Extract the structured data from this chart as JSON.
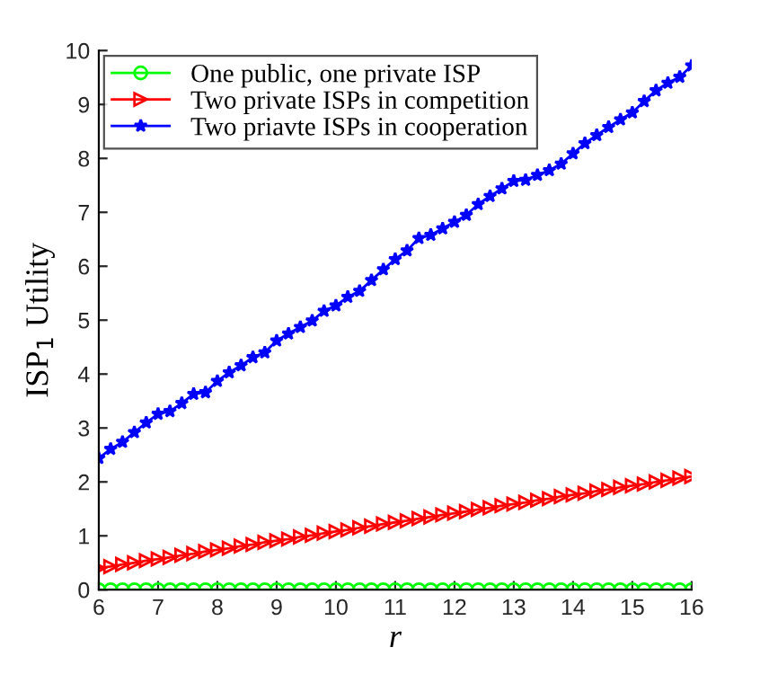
{
  "chart_data": {
    "type": "line",
    "xlabel": "r",
    "ylabel": "ISP$_{1}$ Utility",
    "x": [
      6.0,
      6.2,
      6.4,
      6.6,
      6.8,
      7.0,
      7.2,
      7.4,
      7.6,
      7.8,
      8.0,
      8.2,
      8.4,
      8.6,
      8.8,
      9.0,
      9.2,
      9.4,
      9.6,
      9.8,
      10.0,
      10.2,
      10.4,
      10.6,
      10.8,
      11.0,
      11.2,
      11.4,
      11.6,
      11.8,
      12.0,
      12.2,
      12.4,
      12.6,
      12.8,
      13.0,
      13.2,
      13.4,
      13.6,
      13.8,
      14.0,
      14.2,
      14.4,
      14.6,
      14.8,
      15.0,
      15.2,
      15.4,
      15.6,
      15.8,
      16.0
    ],
    "series": [
      {
        "name": "One public, one private ISP",
        "color": "#00ff00",
        "marker": "circle",
        "values": [
          0,
          0,
          0,
          0,
          0,
          0,
          0,
          0,
          0,
          0,
          0,
          0,
          0,
          0,
          0,
          0,
          0,
          0,
          0,
          0,
          0,
          0,
          0,
          0,
          0,
          0,
          0,
          0,
          0,
          0,
          0,
          0,
          0,
          0,
          0,
          0,
          0,
          0,
          0,
          0,
          0,
          0,
          0,
          0,
          0,
          0,
          0,
          0,
          0,
          0,
          0
        ]
      },
      {
        "name": "Two private ISPs in competition",
        "color": "#ff0000",
        "marker": "triangle",
        "values": [
          0.4,
          0.43,
          0.47,
          0.5,
          0.54,
          0.57,
          0.6,
          0.64,
          0.67,
          0.71,
          0.74,
          0.77,
          0.81,
          0.84,
          0.88,
          0.91,
          0.94,
          0.98,
          1.01,
          1.05,
          1.08,
          1.11,
          1.15,
          1.18,
          1.22,
          1.25,
          1.28,
          1.32,
          1.35,
          1.39,
          1.42,
          1.45,
          1.49,
          1.52,
          1.56,
          1.59,
          1.62,
          1.66,
          1.69,
          1.73,
          1.76,
          1.79,
          1.83,
          1.86,
          1.9,
          1.93,
          1.96,
          2.0,
          2.03,
          2.07,
          2.1
        ]
      },
      {
        "name": "Two priavte ISPs in cooperation",
        "color": "#0000ff",
        "marker": "star",
        "values": [
          2.44,
          2.61,
          2.74,
          2.92,
          3.1,
          3.26,
          3.31,
          3.46,
          3.63,
          3.66,
          3.87,
          4.03,
          4.16,
          4.31,
          4.4,
          4.62,
          4.75,
          4.87,
          4.99,
          5.17,
          5.27,
          5.43,
          5.54,
          5.74,
          5.94,
          6.13,
          6.29,
          6.52,
          6.58,
          6.7,
          6.82,
          6.95,
          7.15,
          7.3,
          7.44,
          7.58,
          7.6,
          7.69,
          7.78,
          7.9,
          8.09,
          8.28,
          8.43,
          8.58,
          8.72,
          8.85,
          9.06,
          9.26,
          9.4,
          9.51,
          9.72
        ]
      }
    ],
    "xlim": [
      6,
      16
    ],
    "xticks": [
      6,
      7,
      8,
      9,
      10,
      11,
      12,
      13,
      14,
      15,
      16
    ],
    "ylim": [
      0,
      10
    ],
    "yticks": [
      0,
      1,
      2,
      3,
      4,
      5,
      6,
      7,
      8,
      9,
      10
    ],
    "grid": false,
    "legend": "top left",
    "line_style": "solid"
  }
}
